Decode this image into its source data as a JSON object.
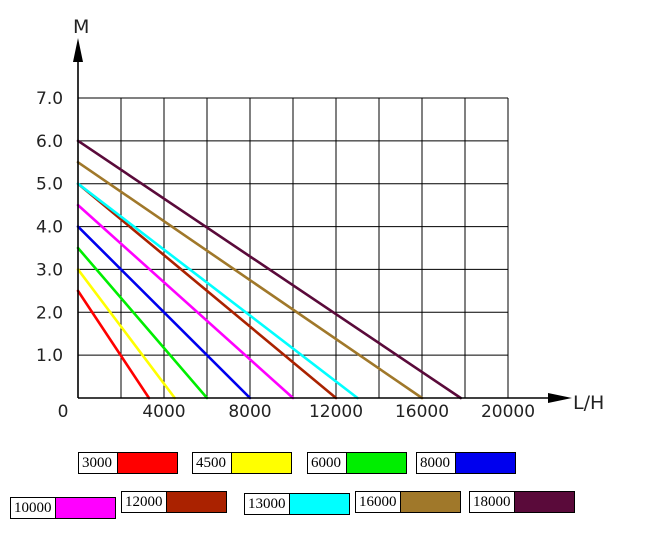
{
  "chart_data": {
    "type": "line",
    "title": "",
    "xlabel": "L/H",
    "ylabel": "M",
    "xlim": [
      0,
      20000
    ],
    "ylim": [
      0,
      7.0
    ],
    "x_ticks": [
      "0",
      "4000",
      "8000",
      "12000",
      "16000",
      "20000"
    ],
    "y_ticks": [
      "1.0",
      "2.0",
      "3.0",
      "4.0",
      "5.0",
      "6.0",
      "7.0"
    ],
    "grid": true,
    "legend_position": "bottom",
    "series": [
      {
        "name": "3000",
        "color": "#ff0000",
        "x": [
          0,
          3300
        ],
        "y": [
          2.5,
          0
        ]
      },
      {
        "name": "4500",
        "color": "#ffff00",
        "x": [
          0,
          4500
        ],
        "y": [
          3.0,
          0
        ]
      },
      {
        "name": "6000",
        "color": "#00ee00",
        "x": [
          0,
          6000
        ],
        "y": [
          3.5,
          0
        ]
      },
      {
        "name": "8000",
        "color": "#0000ee",
        "x": [
          0,
          8000
        ],
        "y": [
          4.0,
          0
        ]
      },
      {
        "name": "10000",
        "color": "#ff00ff",
        "x": [
          0,
          10000
        ],
        "y": [
          4.5,
          0
        ]
      },
      {
        "name": "12000",
        "color": "#aa2200",
        "x": [
          0,
          12000
        ],
        "y": [
          5.0,
          0
        ]
      },
      {
        "name": "13000",
        "color": "#00ffff",
        "x": [
          0,
          13000
        ],
        "y": [
          5.0,
          0
        ]
      },
      {
        "name": "16000",
        "color": "#a0782a",
        "x": [
          0,
          16000
        ],
        "y": [
          5.5,
          0
        ]
      },
      {
        "name": "18000",
        "color": "#5a0a3a",
        "x": [
          0,
          17800
        ],
        "y": [
          6.0,
          0
        ]
      }
    ]
  }
}
